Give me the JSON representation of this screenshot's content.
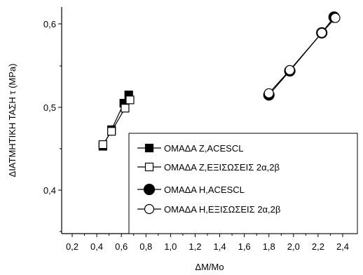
{
  "chart_data": {
    "type": "scatter",
    "xlabel": "ΔM/Mo",
    "ylabel": "ΔΙΑΤΜΗΤΙΚΗ ΤΑΣΗ τ (MPa)",
    "xlim": [
      0.2,
      2.5
    ],
    "ylim": [
      0.35,
      0.62
    ],
    "x_ticks": [
      "0,2",
      "0,4",
      "0,6",
      "0,8",
      "1,0",
      "1,2",
      "1,4",
      "1,6",
      "1,8",
      "2,0",
      "2,2",
      "2,4"
    ],
    "y_ticks": [
      "0,4",
      "0,5",
      "0,6"
    ],
    "legend_position": "lower-right",
    "series": [
      {
        "name": "ΟΜΑΔΑ Ζ,ACESCL",
        "marker": "filled-square",
        "x": [
          0.45,
          0.52,
          0.62,
          0.66
        ],
        "y": [
          0.453,
          0.473,
          0.505,
          0.515
        ]
      },
      {
        "name": "ΟΜΑΔΑ Ζ,ΕΞΙΣΩΣΕΙΣ 2α,2β",
        "marker": "open-square",
        "x": [
          0.45,
          0.52,
          0.63,
          0.67
        ],
        "y": [
          0.455,
          0.471,
          0.499,
          0.509
        ]
      },
      {
        "name": "ΟΜΑΔΑ Η,ACESCL",
        "marker": "filled-circle",
        "x": [
          1.8,
          1.97,
          2.23,
          2.33
        ],
        "y": [
          0.515,
          0.544,
          0.59,
          0.609
        ]
      },
      {
        "name": "ΟΜΑΔΑ Η,ΕΞΙΣΩΣΕΙΣ 2α,2β",
        "marker": "open-circle",
        "x": [
          1.8,
          1.97,
          2.23,
          2.34
        ],
        "y": [
          0.517,
          0.545,
          0.59,
          0.608
        ]
      }
    ]
  }
}
